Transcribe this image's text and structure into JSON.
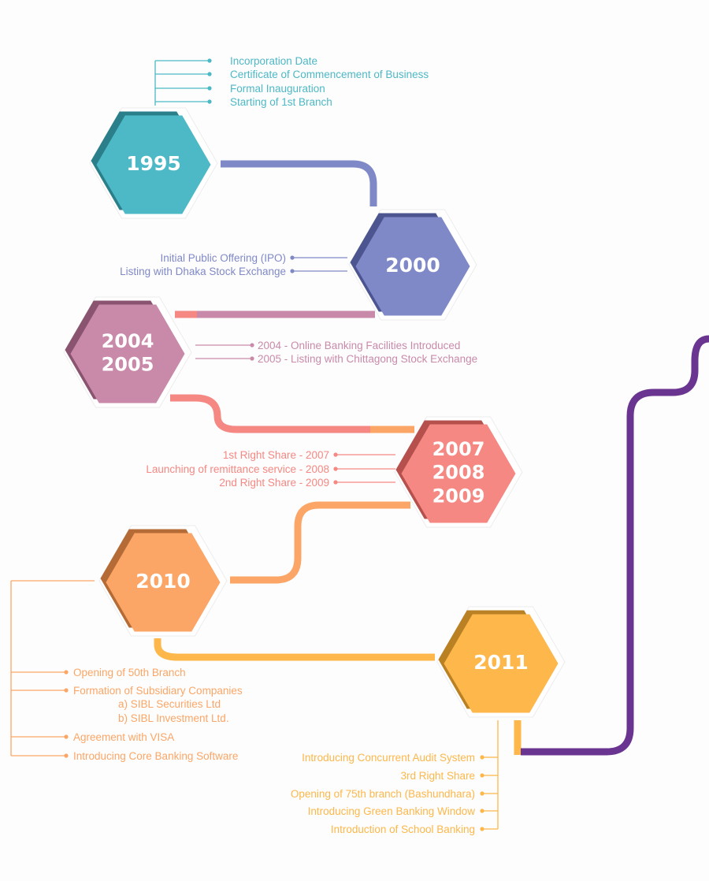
{
  "milestones": [
    {
      "years": [
        "1995"
      ],
      "color": "#4db8c6",
      "dark": "#2b7f8a",
      "events": [
        "Incorporation Date",
        "Certificate of Commencement of Business",
        "Formal Inauguration",
        "Starting of 1st Branch"
      ]
    },
    {
      "years": [
        "2000"
      ],
      "color": "#8089c8",
      "dark": "#4c5590",
      "events": [
        "Initial Public Offering (IPO)",
        "Listing with Dhaka Stock Exchange"
      ]
    },
    {
      "years": [
        "2004",
        "2005"
      ],
      "color": "#c98aaa",
      "dark": "#8a5470",
      "events": [
        "2004 - Online Banking Facilities Introduced",
        "2005 - Listing with Chittagong Stock Exchange"
      ]
    },
    {
      "years": [
        "2007",
        "2008",
        "2009"
      ],
      "color": "#f58882",
      "dark": "#b6504c",
      "events": [
        "1st Right Share - 2007",
        "Launching of remittance service - 2008",
        "2nd Right Share - 2009"
      ]
    },
    {
      "years": [
        "2010"
      ],
      "color": "#fba666",
      "dark": "#b56b35",
      "events": [
        "Opening of 50th Branch",
        "Formation of Subsidiary Companies",
        "a) SIBL Securities Ltd",
        "b) SIBL Investment Ltd.",
        "Agreement with VISA",
        "Introducing Core Banking Software"
      ]
    },
    {
      "years": [
        "2011"
      ],
      "color": "#fdb74a",
      "dark": "#b98024",
      "events": [
        "Introducing Concurrent Audit System",
        "3rd Right Share",
        "Opening of 75th branch (Bashundhara)",
        "Introducing Green Banking Window",
        "Introduction of School Banking"
      ]
    }
  ],
  "colors": {
    "future_path": "#6a3590"
  }
}
